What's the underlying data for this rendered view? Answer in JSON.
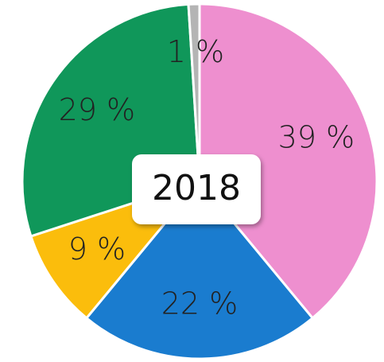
{
  "chart_data": {
    "type": "pie",
    "title": "2018",
    "categories": [
      null,
      null,
      null,
      null,
      null
    ],
    "values": [
      39,
      22,
      9,
      29,
      1
    ],
    "value_labels": [
      "39 %",
      "22 %",
      "9 %",
      "29 %",
      "1 %"
    ],
    "colors": [
      "#ee8fcf",
      "#1a7ccf",
      "#fbbd0c",
      "#10975a",
      "#b4b4b4"
    ]
  }
}
